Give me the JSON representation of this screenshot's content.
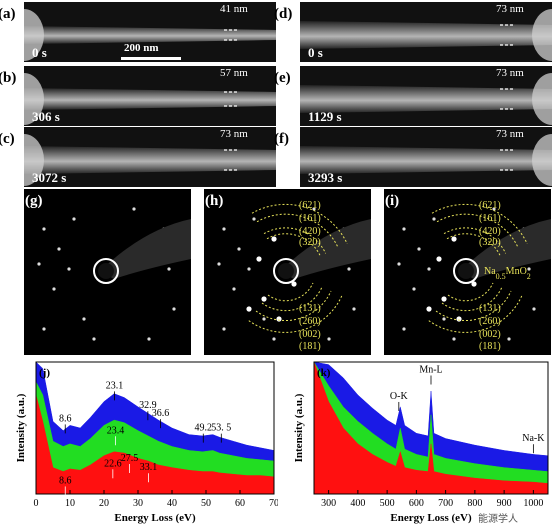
{
  "tem_panels": [
    {
      "label": "(a)",
      "time": "0 s",
      "width": "41 nm",
      "scale": "200 nm"
    },
    {
      "label": "(b)",
      "time": "306 s",
      "width": "57 nm"
    },
    {
      "label": "(c)",
      "time": "3072 s",
      "width": "73 nm"
    },
    {
      "label": "(d)",
      "time": "0 s",
      "width": "73 nm"
    },
    {
      "label": "(e)",
      "time": "1129 s",
      "width": "73 nm"
    },
    {
      "label": "(f)",
      "time": "3293 s",
      "width": "73 nm"
    }
  ],
  "diffraction_panels": [
    {
      "label": "(g)"
    },
    {
      "label": "(h)",
      "rings": [
        "(621)",
        "(161)",
        "(420)",
        "(320)",
        "(131)",
        "(260)",
        "(002)",
        "(181)"
      ]
    },
    {
      "label": "(i)",
      "rings": [
        "(621)",
        "(161)",
        "(420)",
        "(320)",
        "(131)",
        "(260)",
        "(002)",
        "(181)"
      ],
      "phase": "Na",
      "phase_sub": "0.5",
      "phase_rest": "MnO",
      "phase_sub2": "2"
    }
  ],
  "chart_data": [
    {
      "type": "area",
      "label": "(j)",
      "xlabel": "Energy Loss (eV)",
      "ylabel": "Intensity (a.u.)",
      "xlim": [
        0,
        70
      ],
      "xticks": [
        "0",
        "10",
        "20",
        "30",
        "40",
        "50",
        "60",
        "70"
      ],
      "series": [
        {
          "color": "#1a1ae6",
          "x": [
            0,
            2,
            5,
            8,
            10,
            13,
            16,
            20,
            23,
            26,
            30,
            33,
            36,
            40,
            45,
            49,
            52,
            54,
            58,
            62,
            66,
            70
          ],
          "y": [
            1.0,
            0.95,
            0.55,
            0.48,
            0.52,
            0.5,
            0.58,
            0.7,
            0.76,
            0.73,
            0.66,
            0.61,
            0.56,
            0.5,
            0.45,
            0.44,
            0.45,
            0.43,
            0.4,
            0.37,
            0.35,
            0.33
          ]
        },
        {
          "color": "#22dd22",
          "x": [
            0,
            2,
            5,
            8,
            10,
            13,
            16,
            20,
            23,
            26,
            30,
            33,
            36,
            40,
            45,
            49,
            52,
            54,
            58,
            62,
            66,
            70
          ],
          "y": [
            0.85,
            0.75,
            0.4,
            0.36,
            0.38,
            0.36,
            0.42,
            0.52,
            0.56,
            0.54,
            0.48,
            0.44,
            0.4,
            0.36,
            0.33,
            0.32,
            0.33,
            0.31,
            0.29,
            0.27,
            0.26,
            0.25
          ]
        },
        {
          "color": "#ff1010",
          "x": [
            0,
            2,
            5,
            8,
            10,
            13,
            16,
            20,
            23,
            26,
            30,
            33,
            36,
            40,
            45,
            49,
            52,
            54,
            58,
            62,
            66,
            70
          ],
          "y": [
            0.75,
            0.55,
            0.2,
            0.17,
            0.19,
            0.18,
            0.22,
            0.29,
            0.32,
            0.31,
            0.27,
            0.25,
            0.22,
            0.2,
            0.18,
            0.17,
            0.17,
            0.16,
            0.15,
            0.14,
            0.14,
            0.13
          ]
        }
      ],
      "annotations": [
        {
          "text": "23.1",
          "x": 23.1,
          "y": 0.8,
          "color": "#000"
        },
        {
          "text": "8.6",
          "x": 8.6,
          "y": 0.55,
          "color": "#000"
        },
        {
          "text": "32.9",
          "x": 32.9,
          "y": 0.65,
          "color": "#000"
        },
        {
          "text": "36.6",
          "x": 36.6,
          "y": 0.59,
          "color": "#000"
        },
        {
          "text": "49.2",
          "x": 49.2,
          "y": 0.48,
          "color": "#000"
        },
        {
          "text": "53. 5",
          "x": 54.5,
          "y": 0.48,
          "color": "#000"
        },
        {
          "text": "23.4",
          "x": 23.4,
          "y": 0.46,
          "color": "#ffffff"
        },
        {
          "text": "22.6",
          "x": 22.6,
          "y": 0.21,
          "color": "#ffffff"
        },
        {
          "text": "27.5",
          "x": 27.5,
          "y": 0.25,
          "color": "#ffffff"
        },
        {
          "text": "33.1",
          "x": 33.1,
          "y": 0.18,
          "color": "#ffffff"
        },
        {
          "text": "8.6",
          "x": 8.6,
          "y": 0.08,
          "color": "#ffffff"
        }
      ]
    },
    {
      "type": "area",
      "label": "(k)",
      "xlabel": "Energy Loss (eV)",
      "ylabel": "Intensity (a.u.)",
      "xlim": [
        250,
        1050
      ],
      "xticks": [
        "300",
        "400",
        "500",
        "600",
        "700",
        "800",
        "900",
        "1000"
      ],
      "series": [
        {
          "color": "#1a1ae6",
          "x": [
            250,
            300,
            350,
            400,
            450,
            500,
            530,
            545,
            560,
            600,
            640,
            650,
            660,
            700,
            800,
            900,
            1000,
            1050
          ],
          "y": [
            1.0,
            0.98,
            0.88,
            0.75,
            0.65,
            0.56,
            0.52,
            0.66,
            0.52,
            0.46,
            0.44,
            0.78,
            0.46,
            0.42,
            0.37,
            0.33,
            0.3,
            0.29
          ]
        },
        {
          "color": "#22dd22",
          "x": [
            250,
            300,
            350,
            400,
            450,
            500,
            530,
            545,
            560,
            600,
            640,
            650,
            660,
            700,
            800,
            900,
            1000,
            1050
          ],
          "y": [
            1.0,
            0.82,
            0.66,
            0.55,
            0.46,
            0.38,
            0.34,
            0.5,
            0.34,
            0.3,
            0.28,
            0.6,
            0.3,
            0.27,
            0.23,
            0.2,
            0.18,
            0.17
          ]
        },
        {
          "color": "#ff1010",
          "x": [
            250,
            300,
            350,
            400,
            450,
            500,
            530,
            545,
            560,
            600,
            640,
            650,
            660,
            700,
            800,
            900,
            1000,
            1050
          ],
          "y": [
            1.0,
            0.7,
            0.5,
            0.38,
            0.3,
            0.24,
            0.21,
            0.32,
            0.2,
            0.18,
            0.17,
            0.38,
            0.17,
            0.15,
            0.12,
            0.1,
            0.09,
            0.08
          ]
        }
      ],
      "annotations": [
        {
          "text": "O-K",
          "x": 540,
          "y": 0.72,
          "color": "#000"
        },
        {
          "text": "Mn-L",
          "x": 650,
          "y": 0.92,
          "color": "#000"
        },
        {
          "text": "Na-K",
          "x": 1000,
          "y": 0.4,
          "color": "#000"
        }
      ]
    }
  ],
  "watermark": "能源学人",
  "colors": {
    "yellow": "#e8e35a",
    "blue": "#1a1ae6",
    "green": "#22dd22",
    "red": "#ff1010"
  }
}
